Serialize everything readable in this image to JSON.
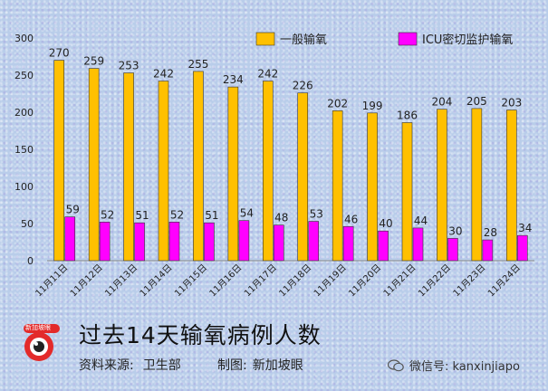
{
  "chart_data": {
    "type": "bar",
    "categories": [
      "11月11日",
      "11月12日",
      "11月13日",
      "11月14日",
      "11月15日",
      "11月16日",
      "11月17日",
      "11月18日",
      "11月19日",
      "11月20日",
      "11月21日",
      "11月22日",
      "11月23日",
      "11月24日"
    ],
    "series": [
      {
        "name": "一般输氧",
        "color": "#ffc000",
        "values": [
          270,
          259,
          253,
          242,
          255,
          234,
          242,
          226,
          202,
          199,
          186,
          204,
          205,
          203
        ]
      },
      {
        "name": "ICU密切监护输氧",
        "color": "#ff00ff",
        "values": [
          59,
          52,
          51,
          52,
          51,
          54,
          48,
          53,
          46,
          40,
          44,
          30,
          28,
          34
        ]
      }
    ],
    "yticks": [
      0,
      50,
      100,
      150,
      200,
      250,
      300
    ],
    "ylim": [
      0,
      300
    ],
    "legend_position": "top-right",
    "grid": false
  },
  "footer": {
    "title": "过去14天输氧病例人数",
    "source_label": "资料来源:",
    "source_value": "卫生部",
    "credit_label": "制图:",
    "credit_value": "新加坡眼",
    "logo_text": "新加坡眼",
    "wechat": "微信号: kanxinjiapo"
  }
}
